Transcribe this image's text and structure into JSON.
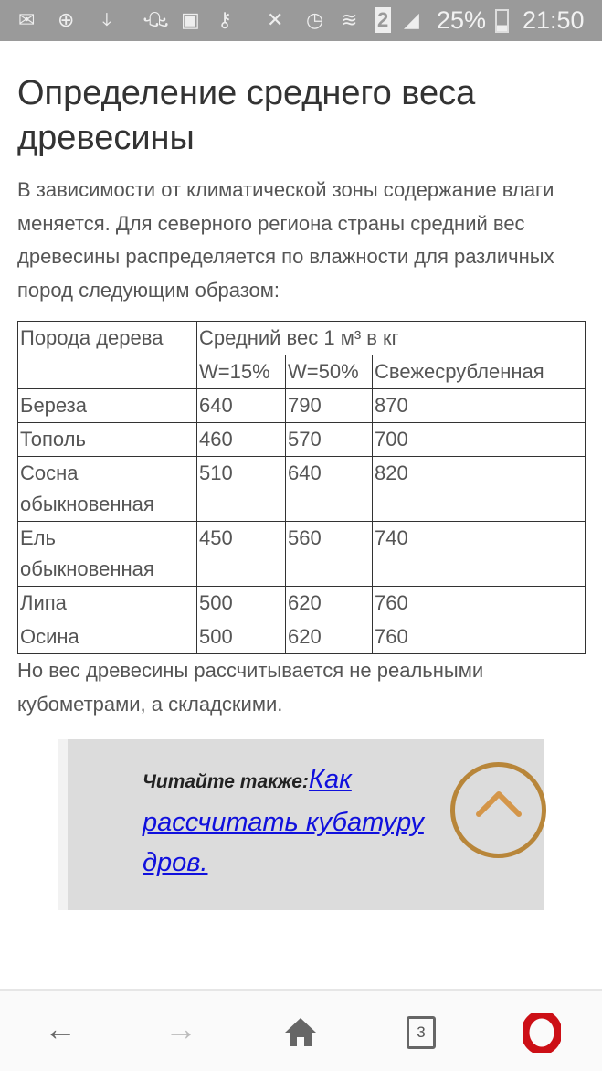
{
  "status_bar": {
    "battery": "25%",
    "time": "21:50",
    "sim": "2",
    "icons": [
      "message-icon",
      "add-contact-icon",
      "download-icon",
      "odnoklassniki-icon",
      "gallery-icon",
      "key-icon",
      "mute-icon",
      "alarm-icon",
      "wifi-icon",
      "sim-icon",
      "signal-icon",
      "battery-icon"
    ]
  },
  "article": {
    "title": "Определение среднего веса древесины",
    "intro": "В зависимости от климатической зоны содержание влаги меняется. Для северного региона страны средний вес древесины распределяется по влажности для различных пород следующим образом:",
    "table": {
      "header_species": "Порода дерева",
      "header_weight": "Средний вес 1 м³ в кг",
      "subheaders": [
        "W=15%",
        "W=50%",
        "Свежесрубленная"
      ],
      "rows": [
        [
          "Береза",
          "640",
          "790",
          "870"
        ],
        [
          "Тополь",
          "460",
          "570",
          "700"
        ],
        [
          "Сосна обыкновенная",
          "510",
          "640",
          "820"
        ],
        [
          "Ель обыкновенная",
          "450",
          "560",
          "740"
        ],
        [
          "Липа",
          "500",
          "620",
          "760"
        ],
        [
          "Осина",
          "500",
          "620",
          "760"
        ]
      ]
    },
    "outro": "Но вес древесины рассчитывается не реальными кубометрами, а складскими.",
    "see_also_label": "Читайте также:",
    "see_also_link": "Как рассчитать кубатуру дров."
  },
  "browser_nav": {
    "tabs_count": "3",
    "accent": "#cc0f16",
    "scroll_top_color": "#b8863a"
  }
}
